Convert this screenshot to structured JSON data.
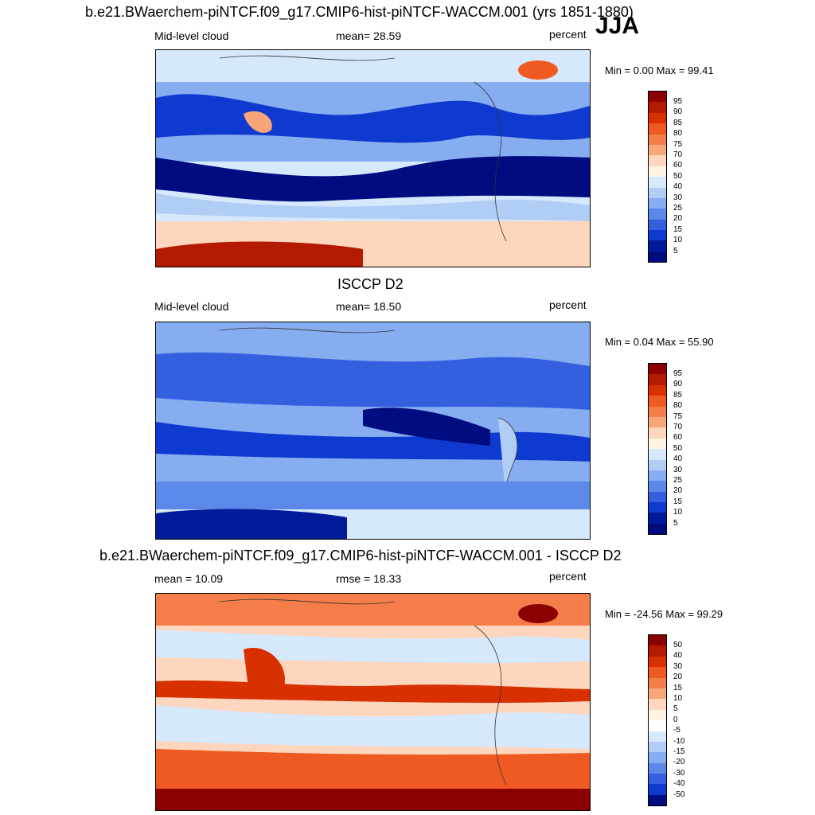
{
  "season": "JJA",
  "units": "percent",
  "panels": [
    {
      "title": "b.e21.BWaerchem-piNTCF.f09_g17.CMIP6-hist-piNTCF-WACCM.001 (yrs 1851-1880)",
      "variable": "Mid-level cloud",
      "stat": "mean=  28.59",
      "units": "percent",
      "minmax": "Min =   0.00 Max =  99.41",
      "palette": "blue-red",
      "levels": [
        "95",
        "90",
        "85",
        "80",
        "75",
        "70",
        "60",
        "50",
        "40",
        "30",
        "25",
        "20",
        "15",
        "10",
        "5"
      ]
    },
    {
      "title": "ISCCP D2",
      "variable": "Mid-level cloud",
      "stat": "mean=  18.50",
      "units": "percent",
      "minmax": "Min =   0.04 Max =  55.90",
      "palette": "blue-red",
      "levels": [
        "95",
        "90",
        "85",
        "80",
        "75",
        "70",
        "60",
        "50",
        "40",
        "30",
        "25",
        "20",
        "15",
        "10",
        "5"
      ]
    },
    {
      "title": "b.e21.BWaerchem-piNTCF.f09_g17.CMIP6-hist-piNTCF-WACCM.001 - ISCCP D2",
      "variable": "mean =  10.09",
      "stat": "rmse =  18.33",
      "units": "percent",
      "minmax": "Min = -24.56 Max =  99.29",
      "palette": "diff",
      "levels": [
        "50",
        "40",
        "30",
        "20",
        "15",
        "10",
        "5",
        "0",
        "-5",
        "-10",
        "-15",
        "-20",
        "-30",
        "-40",
        "-50"
      ]
    }
  ],
  "chart_data": [
    {
      "type": "heatmap",
      "title": "b.e21.BWaerchem-piNTCF.f09_g17.CMIP6-hist-piNTCF-WACCM.001 (yrs 1851-1880)",
      "subtitle": "Mid-level cloud",
      "mean": 28.59,
      "min": 0.0,
      "max": 99.41,
      "units": "percent",
      "colorbar_levels": [
        5,
        10,
        15,
        20,
        25,
        30,
        40,
        50,
        60,
        70,
        75,
        80,
        85,
        90,
        95
      ]
    },
    {
      "type": "heatmap",
      "title": "ISCCP D2",
      "subtitle": "Mid-level cloud",
      "mean": 18.5,
      "min": 0.04,
      "max": 55.9,
      "units": "percent",
      "colorbar_levels": [
        5,
        10,
        15,
        20,
        25,
        30,
        40,
        50,
        60,
        70,
        75,
        80,
        85,
        90,
        95
      ]
    },
    {
      "type": "heatmap",
      "title": "b.e21.BWaerchem-piNTCF.f09_g17.CMIP6-hist-piNTCF-WACCM.001 - ISCCP D2",
      "mean": 10.09,
      "rmse": 18.33,
      "min": -24.56,
      "max": 99.29,
      "units": "percent",
      "colorbar_levels": [
        -50,
        -40,
        -30,
        -20,
        -15,
        -10,
        -5,
        0,
        5,
        10,
        15,
        20,
        30,
        40,
        50
      ]
    }
  ],
  "colors": {
    "blue_red": [
      "#8b0000",
      "#b31a00",
      "#d93000",
      "#ef5a22",
      "#f47d4a",
      "#f9a57a",
      "#fdd6bd",
      "#fff3e6",
      "#d6e8fb",
      "#b0cdf5",
      "#86adf0",
      "#5c88ea",
      "#3460e0",
      "#0f3ad0",
      "#001a9a",
      "#000c80"
    ],
    "diff": [
      "#8b0000",
      "#b31a00",
      "#d93000",
      "#ef5a22",
      "#f47d4a",
      "#f9a57a",
      "#fdd6bd",
      "#fff3e6",
      "#ffffff",
      "#d6e8fb",
      "#b0cdf5",
      "#86adf0",
      "#5c88ea",
      "#3460e0",
      "#0f3ad0",
      "#000c80"
    ]
  }
}
